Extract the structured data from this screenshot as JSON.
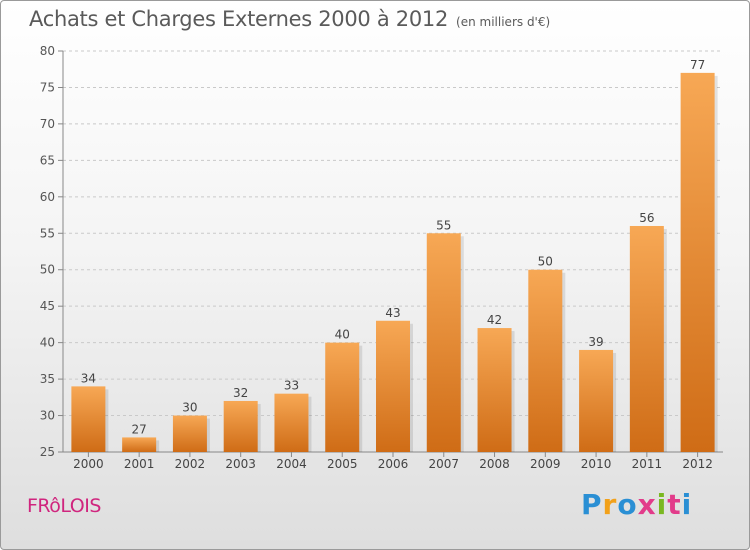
{
  "chart_data": {
    "type": "bar",
    "title": "Achats et Charges Externes 2000 à 2012",
    "unit_label": "(en milliers d'€)",
    "categories": [
      "2000",
      "2001",
      "2002",
      "2003",
      "2004",
      "2005",
      "2006",
      "2007",
      "2008",
      "2009",
      "2010",
      "2011",
      "2012"
    ],
    "values": [
      34,
      27,
      30,
      32,
      33,
      40,
      43,
      55,
      42,
      50,
      39,
      56,
      77
    ],
    "ylim": [
      25,
      80
    ],
    "yticks": [
      25,
      30,
      35,
      40,
      45,
      50,
      55,
      60,
      65,
      70,
      75,
      80
    ],
    "grid": true,
    "bar_color": "#f28a2a"
  },
  "footer": {
    "commune": "FRôLOIS",
    "logo_letters": [
      "P",
      "r",
      "o",
      "x",
      "i",
      "t",
      "i"
    ],
    "logo_colors": [
      "#2a8fd4",
      "#f2a11a",
      "#2a8fd4",
      "#e23b8a",
      "#7ab821",
      "#e23b8a",
      "#2a8fd4"
    ]
  }
}
